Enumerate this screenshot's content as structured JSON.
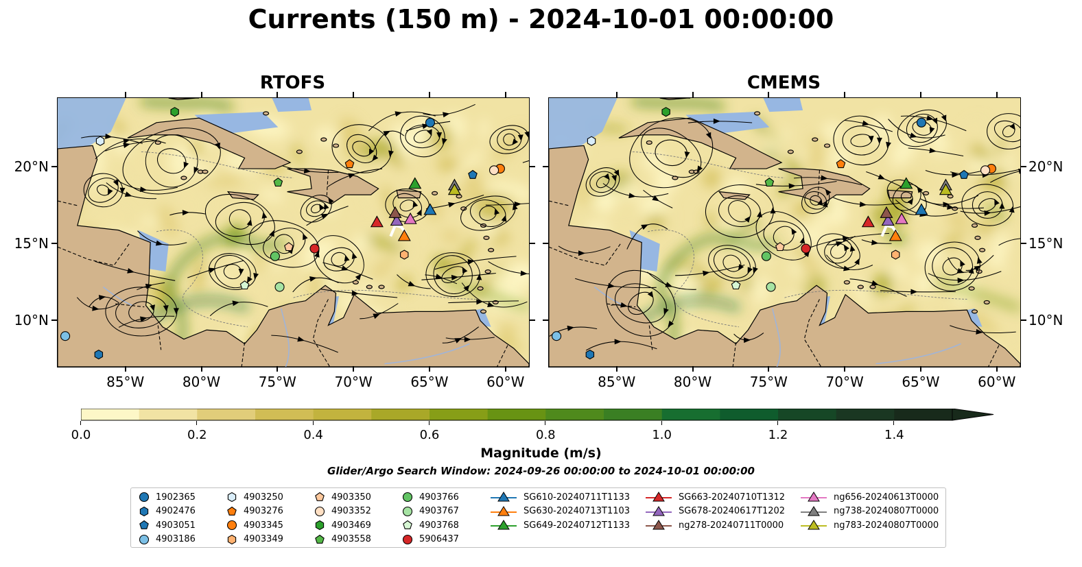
{
  "title": "Currents (150 m) - 2024-10-01 00:00:00",
  "panels": [
    {
      "title": "RTOFS",
      "offset": [
        0,
        0
      ],
      "stream_seed": 3
    },
    {
      "title": "CMEMS",
      "offset": [
        2,
        -3
      ],
      "stream_seed": 7
    }
  ],
  "axes": {
    "lon_ticks": [
      "85°W",
      "80°W",
      "75°W",
      "70°W",
      "65°W",
      "60°W"
    ],
    "lon_values": [
      -85,
      -80,
      -75,
      -70,
      -65,
      -60
    ],
    "lat_ticks": [
      "20°N",
      "15°N",
      "10°N"
    ],
    "lat_values": [
      20,
      15,
      10
    ],
    "lon_range": [
      -89.5,
      -58.5
    ],
    "lat_range": [
      7,
      24.5
    ]
  },
  "colorbar": {
    "label": "Magnitude (m/s)",
    "ticks": [
      "0.0",
      "0.2",
      "0.4",
      "0.6",
      "0.8",
      "1.0",
      "1.2",
      "1.4"
    ],
    "min": 0,
    "max": 1.5,
    "colors": [
      "#fdf7c7",
      "#f1e3a4",
      "#e1cd7a",
      "#d1bd55",
      "#c2b33e",
      "#a9a828",
      "#879e17",
      "#689313",
      "#4f8a1c",
      "#3a7f23",
      "#176e30",
      "#0f5c2d",
      "#164726",
      "#1a3722",
      "#182a1b"
    ]
  },
  "subtitle": "Glider/Argo Search Window: 2024-09-26 00:00:00 to 2024-10-01 00:00:00",
  "colors": {
    "ocean_base": "#f1e3a4",
    "land": "#d2b48c",
    "shelf": "#97b7e2",
    "streamline": "#000000",
    "river": "#a0b4d8"
  },
  "floats": [
    {
      "id": "1902365",
      "marker": "circle",
      "color": "#1f77b4",
      "lon": -65.0,
      "lat": 22.9
    },
    {
      "id": "4902476",
      "marker": "hexagon",
      "color": "#1f77b4",
      "lon": -86.8,
      "lat": 7.8
    },
    {
      "id": "4903051",
      "marker": "pentagon",
      "color": "#1f77b4",
      "lon": -62.2,
      "lat": 19.5
    },
    {
      "id": "4903186",
      "marker": "circle",
      "color": "#7cc0e6",
      "lon": -89.0,
      "lat": 9.0
    },
    {
      "id": "4903250",
      "marker": "hexagon",
      "color": "#d9edf9",
      "lon": -86.7,
      "lat": 21.7
    },
    {
      "id": "4903276",
      "marker": "pentagon",
      "color": "#ff7f0e",
      "lon": -70.3,
      "lat": 20.2
    },
    {
      "id": "4903345",
      "marker": "circle",
      "color": "#ff7f0e",
      "lon": -60.4,
      "lat": 19.9
    },
    {
      "id": "4903349",
      "marker": "hexagon",
      "color": "#ffb271",
      "lon": -66.7,
      "lat": 14.3
    },
    {
      "id": "4903350",
      "marker": "pentagon",
      "color": "#ffc99d",
      "lon": -74.3,
      "lat": 14.8
    },
    {
      "id": "4903352",
      "marker": "circle",
      "color": "#ffe0c4",
      "lon": -60.8,
      "lat": 19.8
    },
    {
      "id": "4903469",
      "marker": "hexagon",
      "color": "#2ca02c",
      "lon": -81.8,
      "lat": 23.6
    },
    {
      "id": "4903558",
      "marker": "pentagon",
      "color": "#54b847",
      "lon": -75.0,
      "lat": 19.0
    },
    {
      "id": "4903766",
      "marker": "circle",
      "color": "#62c464",
      "lon": -75.2,
      "lat": 14.2
    },
    {
      "id": "4903767",
      "marker": "circle",
      "color": "#a6e3a3",
      "lon": -74.9,
      "lat": 12.2
    },
    {
      "id": "4903768",
      "marker": "pentagon",
      "color": "#d6f6d3",
      "lon": -77.2,
      "lat": 12.3
    },
    {
      "id": "5906437",
      "marker": "circle",
      "color": "#d62728",
      "lon": -72.6,
      "lat": 14.7
    }
  ],
  "gliders": [
    {
      "id": "SG610-20240711T1133",
      "color": "#1f77b4",
      "lon": -65.0,
      "lat": 17.2
    },
    {
      "id": "SG630-20240713T1103",
      "color": "#ff7f0e",
      "lon": -66.7,
      "lat": 15.5
    },
    {
      "id": "SG649-20240712T1133",
      "color": "#2ca02c",
      "lon": -66.0,
      "lat": 18.9
    },
    {
      "id": "SG663-20240710T1312",
      "color": "#d62728",
      "lon": -68.5,
      "lat": 16.4
    },
    {
      "id": "SG678-20240617T1202",
      "color": "#9467bd",
      "lon": -67.2,
      "lat": 16.5
    },
    {
      "id": "ng278-20240711T0000",
      "color": "#8c564b",
      "lon": -67.3,
      "lat": 17.0
    },
    {
      "id": "ng656-20240613T0000",
      "color": "#e377c2",
      "lon": -66.3,
      "lat": 16.6
    },
    {
      "id": "ng738-20240807T0000",
      "color": "#7f7f7f",
      "lon": -63.4,
      "lat": 18.8
    },
    {
      "id": "ng783-20240807T0000",
      "color": "#bcbd22",
      "lon": -63.4,
      "lat": 18.5
    }
  ]
}
